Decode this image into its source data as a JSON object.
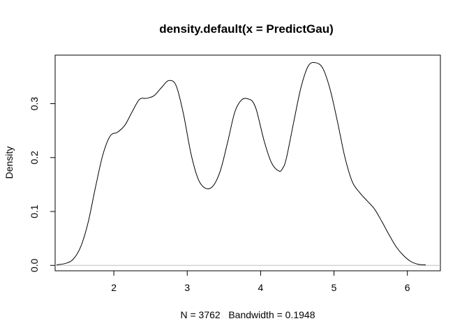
{
  "chart_data": {
    "type": "line",
    "title": "density.default(x = PredictGau)",
    "xlabel": "N = 3762   Bandwidth = 0.1948",
    "ylabel": "Density",
    "xlim": [
      1.2,
      6.45
    ],
    "ylim": [
      -0.01,
      0.39
    ],
    "x_ticks": [
      {
        "value": 2,
        "label": "2"
      },
      {
        "value": 3,
        "label": "3"
      },
      {
        "value": 4,
        "label": "4"
      },
      {
        "value": 5,
        "label": "5"
      },
      {
        "value": 6,
        "label": "6"
      }
    ],
    "y_ticks": [
      {
        "value": 0.0,
        "label": "0.0"
      },
      {
        "value": 0.1,
        "label": "0.1"
      },
      {
        "value": 0.2,
        "label": "0.2"
      },
      {
        "value": 0.3,
        "label": "0.3"
      }
    ],
    "baseline": 0,
    "grid": false,
    "colors": {
      "line": "#000000",
      "baseline": "#bebebe",
      "frame": "#000000"
    },
    "series": [
      {
        "x": [
          1.22,
          1.35,
          1.45,
          1.55,
          1.65,
          1.75,
          1.85,
          1.95,
          2.05,
          2.15,
          2.25,
          2.35,
          2.45,
          2.55,
          2.65,
          2.75,
          2.85,
          2.95,
          3.05,
          3.15,
          3.25,
          3.35,
          3.45,
          3.55,
          3.65,
          3.75,
          3.85,
          3.9,
          3.95,
          4.05,
          4.15,
          4.25,
          4.3,
          4.35,
          4.45,
          4.55,
          4.65,
          4.75,
          4.85,
          4.95,
          5.05,
          5.15,
          5.25,
          5.35,
          5.45,
          5.55,
          5.65,
          5.75,
          5.85,
          5.95,
          6.05,
          6.15,
          6.25
        ],
        "y": [
          0.001,
          0.004,
          0.012,
          0.035,
          0.08,
          0.145,
          0.205,
          0.24,
          0.247,
          0.26,
          0.285,
          0.308,
          0.31,
          0.315,
          0.33,
          0.343,
          0.333,
          0.28,
          0.208,
          0.16,
          0.143,
          0.147,
          0.175,
          0.228,
          0.285,
          0.308,
          0.308,
          0.302,
          0.285,
          0.23,
          0.19,
          0.175,
          0.18,
          0.198,
          0.265,
          0.33,
          0.37,
          0.376,
          0.365,
          0.325,
          0.265,
          0.2,
          0.155,
          0.135,
          0.12,
          0.105,
          0.082,
          0.057,
          0.034,
          0.018,
          0.007,
          0.002,
          0.001
        ]
      }
    ]
  }
}
